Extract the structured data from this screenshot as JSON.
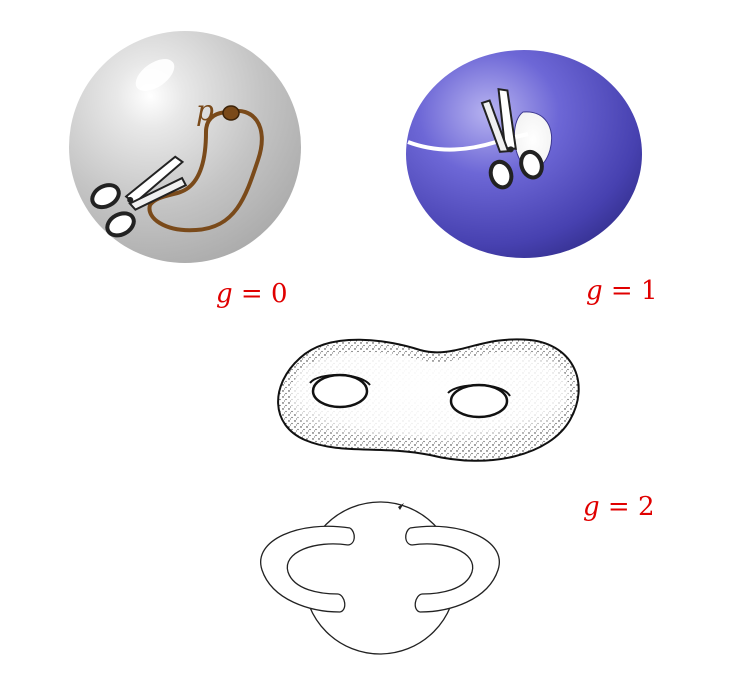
{
  "labels": {
    "sphere_point": "p",
    "genus_var": "g",
    "equals": " = ",
    "genus_sphere": "0",
    "genus_torus": "1",
    "genus_double_torus": "2"
  },
  "colors": {
    "label": "#e00000",
    "curve": "#7a4a1a",
    "sphere": "#c8c8c8",
    "torus": "#5a55c8",
    "cut_line": "#ffffff"
  },
  "icons": [
    "scissors-icon",
    "scissors-icon"
  ]
}
